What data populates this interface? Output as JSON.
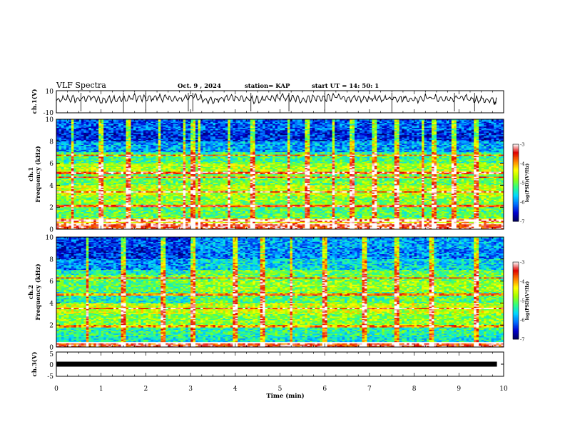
{
  "header": {
    "title": "VLF Spectra",
    "date": "Oct. 9 , 2024",
    "station": "station= KAP",
    "start": "start UT = 14: 50: 1"
  },
  "colors": {
    "waveform": "#000000",
    "colormap": [
      "#00005a",
      "#0000d0",
      "#0070ff",
      "#00d8ff",
      "#30ff80",
      "#a0ff00",
      "#ffff00",
      "#ff8000",
      "#e00000",
      "#ffffff"
    ]
  },
  "chart_data": [
    {
      "type": "line",
      "panel": "waveform-ch1",
      "ylabel": "ch.1(V)",
      "ylim": [
        -10,
        10
      ],
      "ytick_labels": [
        "10",
        "-10"
      ],
      "x_range_min": [
        0,
        10
      ],
      "x_min": [
        0,
        0.25,
        0.5,
        0.75,
        1,
        1.25,
        1.5,
        1.75,
        2,
        2.25,
        2.5,
        2.75,
        3,
        3.25,
        3.5,
        3.75,
        4,
        4.25,
        4.5,
        4.75,
        5,
        5.25,
        5.5,
        5.75,
        6,
        6.25,
        6.5,
        6.75,
        7,
        7.25,
        7.5,
        7.75,
        8,
        8.25,
        8.5,
        8.75,
        9,
        9.25,
        9.5,
        9.75,
        9.85
      ],
      "y_V": [
        0.5,
        3,
        2,
        4,
        1,
        3,
        2,
        4,
        2.5,
        4,
        3,
        2,
        5,
        3,
        1,
        3,
        4,
        2,
        1.5,
        2.5,
        4,
        3,
        2,
        3.5,
        3,
        4.5,
        3,
        2,
        3,
        2.5,
        3.5,
        3,
        2,
        4,
        3,
        2,
        3.5,
        2.5,
        2,
        1,
        0.5
      ]
    },
    {
      "type": "heatmap",
      "panel": "spectrogram-ch1",
      "ylabel_line1": "ch.1",
      "ylabel_line2": "Frequency (kHz)",
      "ylim_khz": [
        0,
        10
      ],
      "ytick_labels": [
        "0",
        "2",
        "4",
        "6",
        "8",
        "10"
      ],
      "xlim_min": [
        0,
        10
      ],
      "colorbar": {
        "label": "log(PSD)(V²/Hz)",
        "range": [
          -7,
          -3
        ],
        "tick_labels": [
          "-3",
          "-4",
          "-5",
          "-6",
          "-7"
        ]
      },
      "freq_bands_khz": [
        0,
        0.5,
        1,
        2,
        3,
        4,
        5,
        6,
        7,
        8,
        9,
        10
      ],
      "band_mean_log_psd": [
        -3.4,
        -4.3,
        -5.1,
        -4.9,
        -4.6,
        -5.0,
        -4.7,
        -5.2,
        -5.9,
        -6.4,
        -6.2
      ],
      "lines_khz": [
        0.5,
        0.8,
        2.1,
        3.4,
        4.7,
        5.1,
        6.7
      ],
      "spikes_min": [
        0.35,
        1.0,
        1.6,
        2.3,
        2.85,
        3.05,
        3.2,
        3.85,
        4.4,
        5.2,
        5.6,
        6.2,
        6.6,
        7.1,
        7.6,
        8.2,
        8.45,
        8.9,
        9.4
      ]
    },
    {
      "type": "heatmap",
      "panel": "spectrogram-ch2",
      "ylabel_line1": "ch.2",
      "ylabel_line2": "Frequency (kHz)",
      "ylim_khz": [
        0,
        10
      ],
      "ytick_labels": [
        "0",
        "2",
        "4",
        "6",
        "8",
        "10"
      ],
      "xlim_min": [
        0,
        10
      ],
      "colorbar": {
        "label": "log(PSD)(V²/Hz)",
        "range": [
          -7,
          -3
        ],
        "tick_labels": [
          "-3",
          "-4",
          "-5",
          "-6",
          "-7"
        ]
      },
      "freq_bands_khz": [
        0,
        0.5,
        1,
        2,
        3,
        4,
        5,
        6,
        7,
        8,
        9,
        10
      ],
      "band_mean_log_psd": [
        -3.5,
        -5.5,
        -5.3,
        -4.9,
        -4.6,
        -5.1,
        -4.8,
        -5.0,
        -5.6,
        -6.0,
        -5.9
      ],
      "transition_min": 3.05,
      "lines_khz": [
        0.4,
        1.9,
        3.5,
        4.8,
        6.3
      ],
      "spikes_min": [
        0.7,
        1.5,
        2.4,
        3.05,
        4.0,
        4.6,
        5.25,
        6.0,
        6.9,
        7.6,
        8.4,
        9.4
      ]
    },
    {
      "type": "line",
      "panel": "waveform-ch3",
      "ylabel": "ch.3(V)",
      "ylim": [
        -5,
        5
      ],
      "ytick_labels": [
        "5",
        "0",
        "-5"
      ],
      "xlim_min": [
        0,
        10
      ],
      "x_min": [
        0,
        9.85
      ],
      "y_V": [
        0,
        0
      ]
    }
  ],
  "xaxis": {
    "label": "Time (min)",
    "tick_labels": [
      "0",
      "1",
      "2",
      "3",
      "4",
      "5",
      "6",
      "7",
      "8",
      "9",
      "10"
    ]
  }
}
